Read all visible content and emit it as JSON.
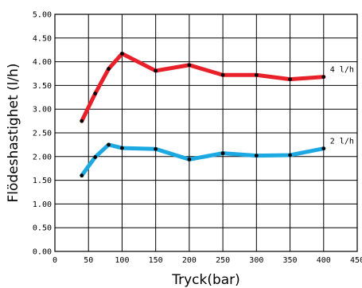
{
  "chart_data": {
    "type": "line",
    "xlabel": "Tryck(bar)",
    "ylabel": "Flödeshastighet (l/h)",
    "xlim": [
      0,
      450
    ],
    "ylim": [
      0,
      5
    ],
    "x_ticks": [
      0,
      50,
      100,
      150,
      200,
      250,
      300,
      350,
      400,
      450
    ],
    "x_tick_labels": [
      "0",
      "50",
      "100",
      "150",
      "200",
      "250",
      "300",
      "350",
      "400",
      "450"
    ],
    "y_ticks": [
      0,
      0.5,
      1,
      1.5,
      2,
      2.5,
      3,
      3.5,
      4,
      4.5,
      5
    ],
    "y_tick_labels": [
      "0.00",
      "0.50",
      "1.00",
      "1.50",
      "2.00",
      "2.50",
      "3.00",
      "3.50",
      "4.00",
      "4.50",
      "5.00"
    ],
    "grid": true,
    "series": [
      {
        "name": "4 l/h",
        "color": "#e8202a",
        "x": [
          40,
          60,
          80,
          100,
          150,
          200,
          250,
          300,
          350,
          400
        ],
        "y": [
          2.75,
          3.33,
          3.85,
          4.17,
          3.81,
          3.93,
          3.72,
          3.72,
          3.63,
          3.68
        ]
      },
      {
        "name": "2 l/h",
        "color": "#1ca8e0",
        "x": [
          40,
          60,
          80,
          100,
          150,
          200,
          250,
          300,
          350,
          400
        ],
        "y": [
          1.6,
          1.99,
          2.25,
          2.18,
          2.16,
          1.94,
          2.07,
          2.02,
          2.03,
          2.17
        ]
      }
    ]
  }
}
